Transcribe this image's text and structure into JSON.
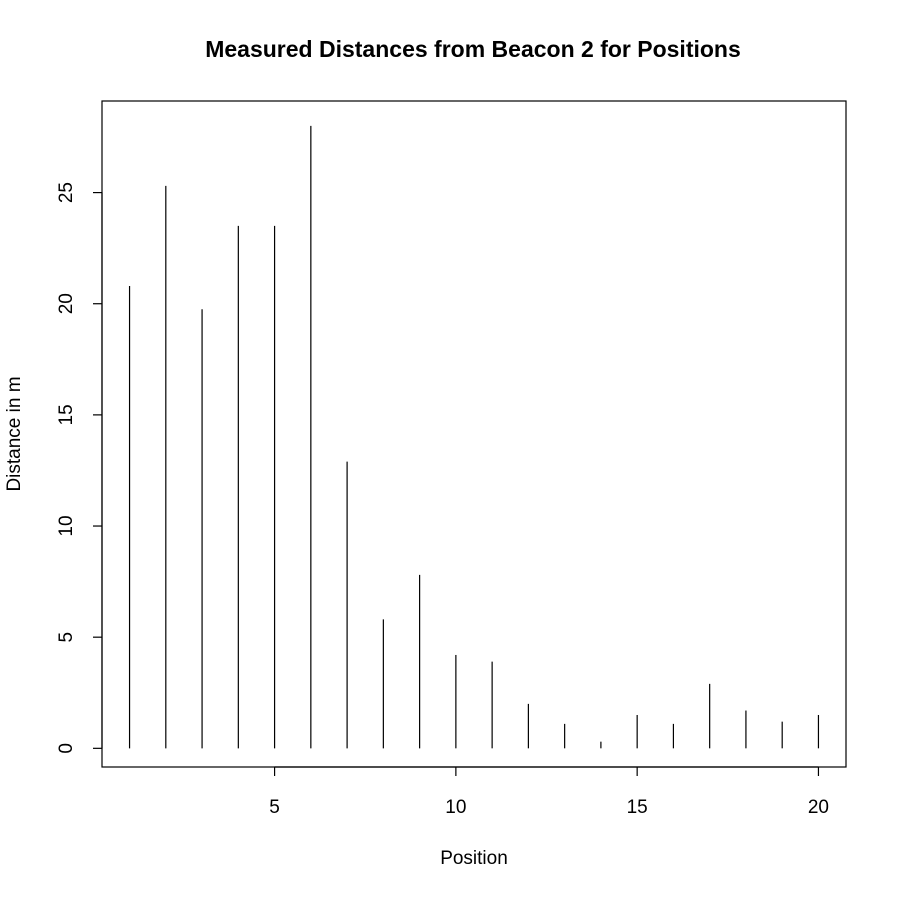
{
  "chart_data": {
    "type": "bar",
    "style": "vertical-lines",
    "title": "Measured Distances from Beacon 2 for Positions",
    "xlabel": "Position",
    "ylabel": "Distance in m",
    "x": [
      1,
      2,
      3,
      4,
      5,
      6,
      7,
      8,
      9,
      10,
      11,
      12,
      13,
      14,
      15,
      16,
      17,
      18,
      19,
      20
    ],
    "values": [
      20.8,
      25.3,
      19.75,
      23.5,
      23.5,
      28.0,
      12.9,
      5.8,
      7.8,
      4.2,
      3.9,
      2.0,
      1.1,
      0.3,
      1.5,
      1.1,
      2.9,
      1.7,
      1.2,
      1.5
    ],
    "xlim": [
      0.24,
      20.76
    ],
    "ylim": [
      -0.84,
      29.12
    ],
    "xticks": [
      5,
      10,
      15,
      20
    ],
    "yticks": [
      0,
      5,
      10,
      15,
      20,
      25
    ],
    "grid": false,
    "legend": "none",
    "line_color": "#000000"
  }
}
